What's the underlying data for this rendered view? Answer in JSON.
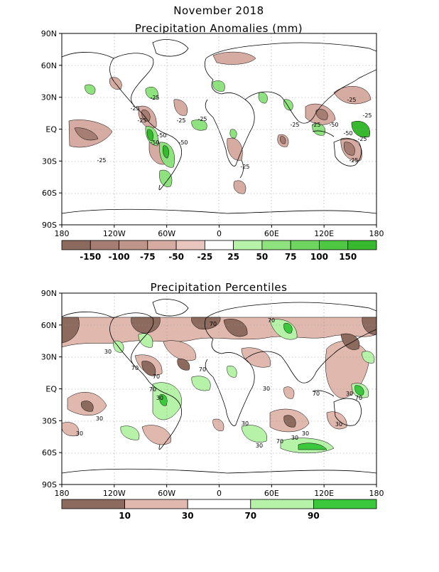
{
  "figure": {
    "title": "November 2018"
  },
  "maps": [
    {
      "title": "Precipitation Anomalies (mm)",
      "lat_labels": [
        "90N",
        "60N",
        "30N",
        "EQ",
        "30S",
        "60S",
        "90S"
      ],
      "lon_labels": [
        "180",
        "120W",
        "60W",
        "0",
        "60E",
        "120E",
        "180"
      ],
      "contour_labels": [
        "-25",
        "-25",
        "-25",
        "-25",
        "-50",
        "-50",
        "-50",
        "-25",
        "-25",
        "-25",
        "-25",
        "-25",
        "-50",
        "-25",
        "-25",
        "-50",
        "-25",
        "-25"
      ],
      "colorbar": {
        "colors": [
          "#8c6a5e",
          "#a67d72",
          "#bf958a",
          "#d6aca2",
          "#e9c6bd",
          "#ffffff",
          "#b6f2a8",
          "#8fe37f",
          "#6ed660",
          "#4ec843",
          "#38b82e"
        ],
        "labels": [
          "-150",
          "-100",
          "-75",
          "-50",
          "-25",
          "25",
          "50",
          "75",
          "100",
          "150"
        ]
      }
    },
    {
      "title": "Precipitation Percentiles",
      "lat_labels": [
        "90N",
        "60N",
        "30N",
        "EQ",
        "30S",
        "60S",
        "90S"
      ],
      "lon_labels": [
        "180",
        "120W",
        "60W",
        "0",
        "60E",
        "120E",
        "180"
      ],
      "contour_labels": [
        "30",
        "70",
        "70",
        "30",
        "70",
        "30",
        "70",
        "30",
        "70",
        "30",
        "70",
        "30",
        "30",
        "30",
        "30",
        "70",
        "30",
        "30",
        "70",
        "70"
      ],
      "colorbar": {
        "colors": [
          "#8c6a5e",
          "#e0b8ae",
          "#ffffff",
          "#b6f2a8",
          "#3cc83c"
        ],
        "labels": [
          "10",
          "30",
          "70",
          "90"
        ]
      }
    }
  ]
}
